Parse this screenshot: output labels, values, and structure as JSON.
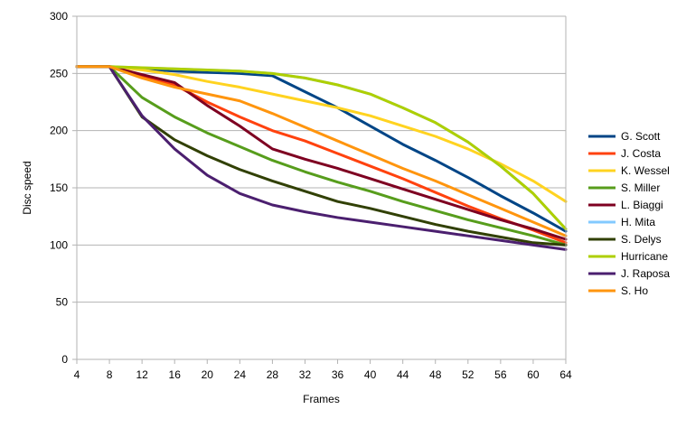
{
  "chart_data": {
    "type": "line",
    "title": "",
    "xlabel": "Frames",
    "ylabel": "Disc speed",
    "x": [
      4,
      8,
      12,
      16,
      20,
      24,
      28,
      32,
      36,
      40,
      44,
      48,
      52,
      56,
      60,
      64
    ],
    "xlim": [
      4,
      64
    ],
    "ylim": [
      0,
      300
    ],
    "yticks": [
      0,
      50,
      100,
      150,
      200,
      250,
      300
    ],
    "grid": "horizontal",
    "legend_position": "right",
    "series": [
      {
        "name": "G. Scott",
        "color": "#004586",
        "values": [
          256,
          256,
          254,
          252,
          251,
          250,
          248,
          234,
          220,
          204,
          188,
          174,
          159,
          143,
          128,
          112
        ]
      },
      {
        "name": "J. Costa",
        "color": "#ff420e",
        "values": [
          256,
          256,
          248,
          240,
          225,
          212,
          200,
          191,
          180,
          169,
          158,
          146,
          134,
          123,
          113,
          102
        ]
      },
      {
        "name": "K. Wessel",
        "color": "#ffd320",
        "values": [
          256,
          256,
          253,
          249,
          243,
          238,
          232,
          226,
          220,
          213,
          204,
          195,
          184,
          171,
          156,
          138
        ]
      },
      {
        "name": "S. Miller",
        "color": "#579d1c",
        "values": [
          256,
          256,
          229,
          212,
          198,
          186,
          174,
          164,
          155,
          147,
          138,
          130,
          122,
          115,
          108,
          100
        ]
      },
      {
        "name": "L. Biaggi",
        "color": "#7e0021",
        "values": [
          256,
          256,
          249,
          242,
          222,
          204,
          184,
          175,
          167,
          158,
          149,
          140,
          131,
          122,
          114,
          105
        ]
      },
      {
        "name": "H. Mita",
        "color": "#83caff",
        "values": [
          256,
          256,
          255,
          254,
          253,
          252,
          250,
          246,
          240,
          232,
          220,
          207,
          190,
          169,
          145,
          114
        ]
      },
      {
        "name": "S. Delys",
        "color": "#314004",
        "values": [
          256,
          256,
          212,
          192,
          178,
          166,
          156,
          147,
          138,
          132,
          125,
          118,
          112,
          107,
          102,
          100
        ]
      },
      {
        "name": "Hurricane",
        "color": "#aecf00",
        "values": [
          256,
          256,
          255,
          254,
          253,
          252,
          250,
          246,
          240,
          232,
          220,
          207,
          190,
          169,
          145,
          114
        ]
      },
      {
        "name": "J. Raposa",
        "color": "#4b1f6f",
        "values": [
          256,
          256,
          213,
          184,
          161,
          145,
          135,
          129,
          124,
          120,
          116,
          112,
          108,
          104,
          100,
          96
        ]
      },
      {
        "name": "S. Ho",
        "color": "#ff950e",
        "values": [
          256,
          256,
          246,
          238,
          232,
          226,
          215,
          203,
          191,
          179,
          167,
          156,
          144,
          132,
          120,
          108
        ]
      }
    ]
  }
}
